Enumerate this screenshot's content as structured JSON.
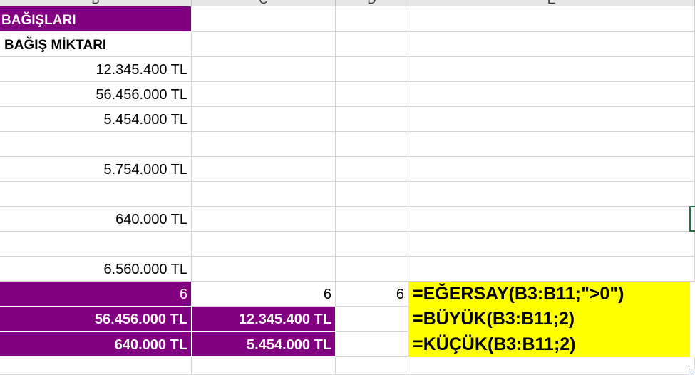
{
  "columns": [
    "B",
    "C",
    "D",
    "E"
  ],
  "table": {
    "title": "BAĞIŞLARI",
    "column_header": "BAĞIŞ MİKTARI",
    "donations": [
      "12.345.400 TL",
      "56.456.000 TL",
      "5.454.000 TL",
      "",
      "5.754.000 TL",
      "",
      "640.000 TL",
      "",
      "6.560.000 TL"
    ]
  },
  "results": {
    "count_b": "6",
    "count_c": "6",
    "count_d": "6",
    "large_b": "56.456.000 TL",
    "large_c": "12.345.400 TL",
    "small_b": "640.000 TL",
    "small_c": "5.454.000 TL"
  },
  "formulas": [
    "=EĞERSAY(B3:B11;\">0\")",
    "=BÜYÜK(B3:B11;2)",
    "=KÜÇÜK(B3:B11;2)"
  ],
  "colors": {
    "header_fill": "#800080",
    "formula_fill": "#ffff00",
    "selection_border": "#217346"
  }
}
